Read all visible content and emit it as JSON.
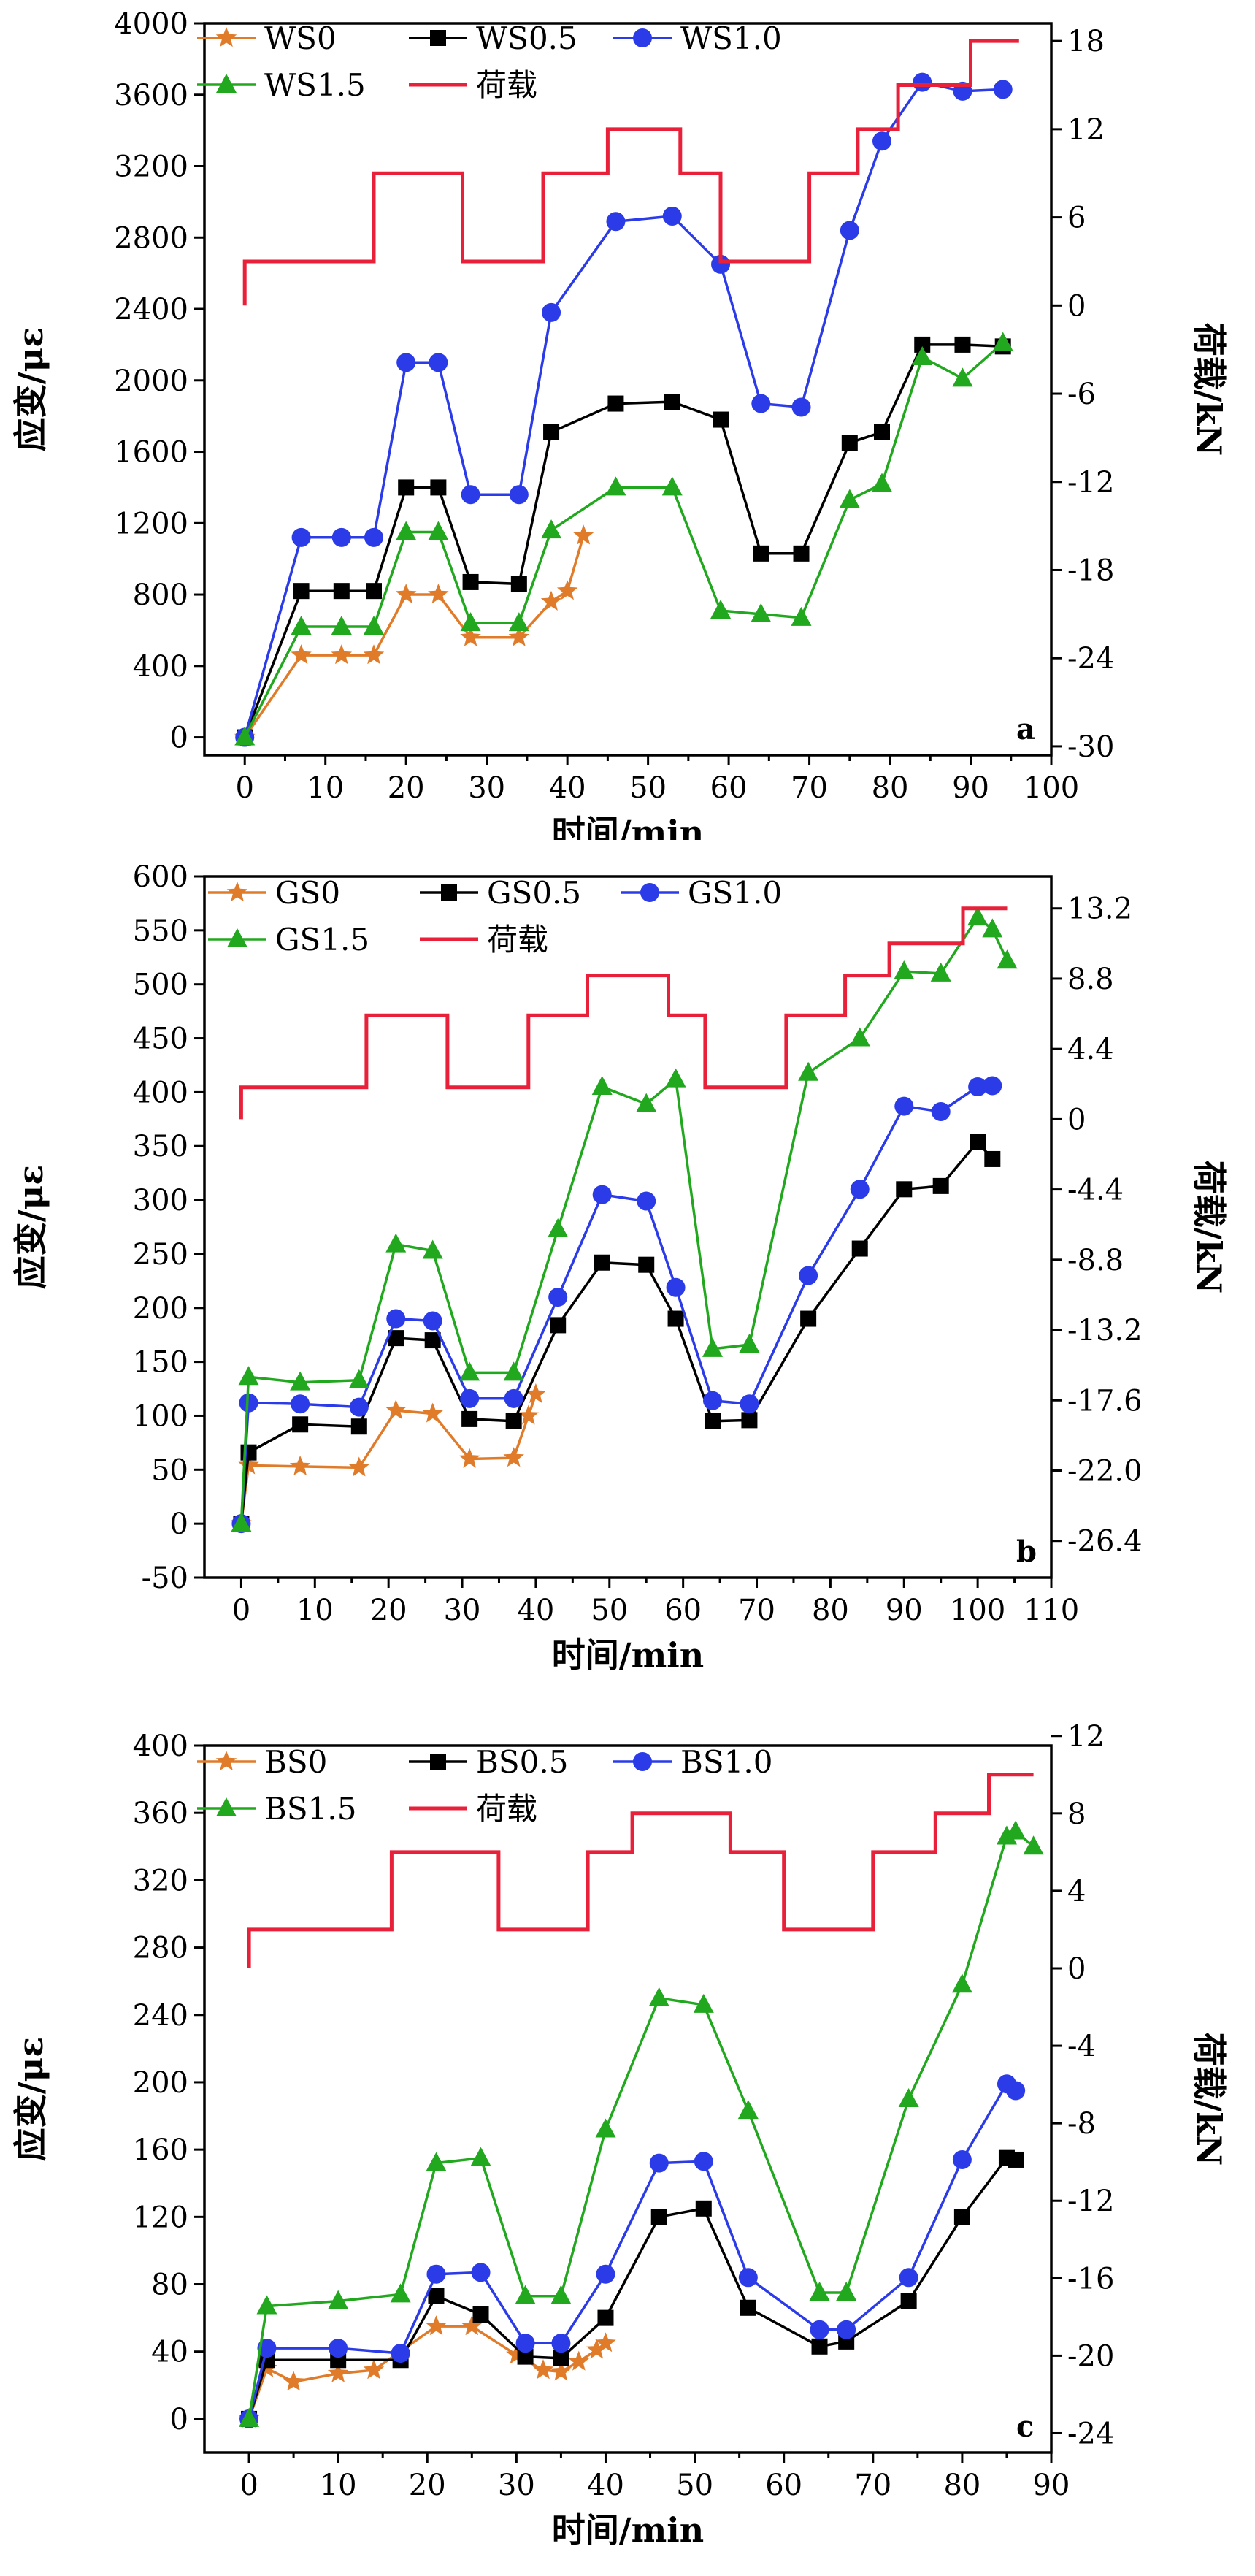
{
  "colors": {
    "s0": "#e07b2a",
    "s05": "#000000",
    "s10": "#2b3be8",
    "s15": "#22a81e",
    "load": "#e8203a"
  },
  "chart_data": [
    {
      "type": "line",
      "panel_label": "a",
      "xlabel": "时间/min",
      "ylabel": "应变/με",
      "y2label": "荷载/kN",
      "xlim": [
        -5,
        100
      ],
      "ylim": [
        -100,
        4000
      ],
      "y2lim": [
        -30.6,
        19.2
      ],
      "xticks": [
        0,
        10,
        20,
        30,
        40,
        50,
        60,
        70,
        80,
        90,
        100
      ],
      "yticks": [
        0,
        400,
        800,
        1200,
        1600,
        2000,
        2400,
        2800,
        3200,
        3600,
        4000
      ],
      "y2ticks": [
        -30,
        -24,
        -18,
        -12,
        -6,
        0,
        6,
        12,
        18
      ],
      "series": [
        {
          "name": "WS0",
          "marker": "star",
          "color": "#e07b2a",
          "x": [
            0,
            7,
            12,
            16,
            20,
            24,
            28,
            34,
            38,
            40,
            42
          ],
          "y": [
            0,
            460,
            460,
            460,
            800,
            800,
            560,
            560,
            760,
            820,
            1130
          ]
        },
        {
          "name": "WS0.5",
          "marker": "square",
          "color": "#000000",
          "x": [
            0,
            7,
            12,
            16,
            20,
            24,
            28,
            34,
            38,
            46,
            53,
            59,
            64,
            69,
            75,
            79,
            84,
            89,
            94
          ],
          "y": [
            0,
            820,
            820,
            820,
            1400,
            1400,
            870,
            860,
            1710,
            1870,
            1880,
            1780,
            1030,
            1030,
            1650,
            1710,
            2200,
            2200,
            2190
          ]
        },
        {
          "name": "WS1.0",
          "marker": "circle",
          "color": "#2b3be8",
          "x": [
            0,
            7,
            12,
            16,
            20,
            24,
            28,
            34,
            38,
            46,
            53,
            59,
            64,
            69,
            75,
            79,
            84,
            89,
            94
          ],
          "y": [
            0,
            1120,
            1120,
            1120,
            2100,
            2100,
            1360,
            1360,
            2380,
            2890,
            2920,
            2650,
            1870,
            1850,
            2840,
            3340,
            3670,
            3620,
            3630
          ]
        },
        {
          "name": "WS1.5",
          "marker": "triangle",
          "color": "#22a81e",
          "x": [
            0,
            7,
            12,
            16,
            20,
            24,
            28,
            34,
            38,
            46,
            53,
            59,
            64,
            69,
            75,
            79,
            84,
            89,
            94
          ],
          "y": [
            0,
            620,
            620,
            620,
            1150,
            1150,
            640,
            640,
            1160,
            1400,
            1400,
            710,
            690,
            670,
            1330,
            1420,
            2130,
            2010,
            2210
          ]
        },
        {
          "name": "荷载",
          "marker": "none",
          "color": "#e8203a",
          "axis": "right",
          "step": true,
          "x": [
            0,
            0,
            16,
            16,
            27,
            27,
            37,
            37,
            45,
            45,
            54,
            54,
            59,
            59,
            70,
            70,
            76,
            76,
            81,
            81,
            90,
            90,
            96
          ],
          "y": [
            0,
            3,
            3,
            9,
            9,
            3,
            3,
            9,
            9,
            12,
            12,
            9,
            9,
            3,
            3,
            9,
            9,
            12,
            12,
            15,
            15,
            18,
            18
          ]
        }
      ]
    },
    {
      "type": "line",
      "panel_label": "b",
      "xlabel": "时间/min",
      "ylabel": "应变/με",
      "y2label": "荷载/kN",
      "xlim": [
        -5,
        110
      ],
      "ylim": [
        -50,
        600
      ],
      "y2lim": [
        -28.7,
        15.2
      ],
      "xticks": [
        0,
        10,
        20,
        30,
        40,
        50,
        60,
        70,
        80,
        90,
        100,
        110
      ],
      "yticks": [
        -50,
        0,
        50,
        100,
        150,
        200,
        250,
        300,
        350,
        400,
        450,
        500,
        550,
        600
      ],
      "y2ticks": [
        "-26.4",
        "-22.0",
        "-17.6",
        "-13.2",
        "-8.8",
        "-4.4",
        "0",
        "4.4",
        "8.8",
        "13.2"
      ],
      "series": [
        {
          "name": "GS0",
          "marker": "star",
          "color": "#e07b2a",
          "x": [
            0,
            1,
            8,
            16,
            21,
            26,
            31,
            37,
            39,
            40
          ],
          "y": [
            0,
            54,
            53,
            52,
            105,
            102,
            60,
            61,
            100,
            120
          ]
        },
        {
          "name": "GS0.5",
          "marker": "square",
          "color": "#000000",
          "x": [
            0,
            1,
            8,
            16,
            21,
            26,
            31,
            37,
            43,
            49,
            55,
            59,
            64,
            69,
            77,
            84,
            90,
            95,
            100,
            102
          ],
          "y": [
            0,
            66,
            92,
            90,
            172,
            170,
            97,
            95,
            184,
            242,
            240,
            190,
            95,
            96,
            190,
            255,
            310,
            313,
            354,
            338
          ]
        },
        {
          "name": "GS1.0",
          "marker": "circle",
          "color": "#2b3be8",
          "x": [
            0,
            1,
            8,
            16,
            21,
            26,
            31,
            37,
            43,
            49,
            55,
            59,
            64,
            69,
            77,
            84,
            90,
            95,
            100,
            102
          ],
          "y": [
            0,
            112,
            111,
            108,
            190,
            188,
            116,
            116,
            210,
            305,
            299,
            219,
            114,
            111,
            230,
            310,
            387,
            382,
            405,
            406
          ]
        },
        {
          "name": "GS1.5",
          "marker": "triangle",
          "color": "#22a81e",
          "x": [
            0,
            1,
            8,
            16,
            21,
            26,
            31,
            37,
            43,
            49,
            55,
            59,
            64,
            69,
            77,
            84,
            90,
            95,
            100,
            102,
            104
          ],
          "y": [
            0,
            136,
            131,
            133,
            259,
            253,
            140,
            140,
            273,
            405,
            389,
            412,
            162,
            166,
            418,
            450,
            512,
            510,
            562,
            551,
            522
          ]
        },
        {
          "name": "荷载",
          "marker": "none",
          "color": "#e8203a",
          "axis": "right",
          "step": true,
          "x": [
            0,
            0,
            17,
            17,
            28,
            28,
            39,
            39,
            47,
            47,
            58,
            58,
            63,
            63,
            74,
            74,
            82,
            82,
            88,
            88,
            98,
            98,
            104
          ],
          "y": [
            0,
            2,
            2,
            6.5,
            6.5,
            2,
            2,
            6.5,
            6.5,
            9,
            9,
            6.5,
            6.5,
            2,
            2,
            6.5,
            6.5,
            9,
            9,
            11,
            11,
            13.2,
            13.2
          ]
        }
      ]
    },
    {
      "type": "line",
      "panel_label": "c",
      "xlabel": "时间/min",
      "ylabel": "应变/με",
      "y2label": "荷载/kN",
      "xlim": [
        -5,
        90
      ],
      "ylim": [
        -20,
        400
      ],
      "y2lim": [
        -25,
        11.5
      ],
      "xticks": [
        0,
        10,
        20,
        30,
        40,
        50,
        60,
        70,
        80,
        90
      ],
      "yticks": [
        0,
        40,
        80,
        120,
        160,
        200,
        240,
        280,
        320,
        360,
        400
      ],
      "y2ticks": [
        -24,
        -20,
        -16,
        -12,
        -8,
        -4,
        0,
        4,
        8,
        12
      ],
      "series": [
        {
          "name": "BS0",
          "marker": "star",
          "color": "#e07b2a",
          "x": [
            0,
            2,
            5,
            10,
            14,
            21,
            25,
            30,
            33,
            35,
            37,
            39,
            40
          ],
          "y": [
            0,
            30,
            22,
            27,
            29,
            55,
            55,
            38,
            29,
            28,
            34,
            41,
            45
          ]
        },
        {
          "name": "BS0.5",
          "marker": "square",
          "color": "#000000",
          "x": [
            0,
            2,
            10,
            17,
            21,
            26,
            31,
            35,
            40,
            46,
            51,
            56,
            64,
            67,
            74,
            80,
            85,
            86
          ],
          "y": [
            0,
            35,
            35,
            35,
            73,
            62,
            37,
            36,
            60,
            120,
            125,
            66,
            43,
            46,
            70,
            120,
            155,
            154
          ]
        },
        {
          "name": "BS1.0",
          "marker": "circle",
          "color": "#2b3be8",
          "x": [
            0,
            2,
            10,
            17,
            21,
            26,
            31,
            35,
            40,
            46,
            51,
            56,
            64,
            67,
            74,
            80,
            85,
            86
          ],
          "y": [
            0,
            42,
            42,
            39,
            86,
            87,
            45,
            45,
            86,
            152,
            153,
            84,
            53,
            53,
            84,
            154,
            199,
            195
          ]
        },
        {
          "name": "BS1.5",
          "marker": "triangle",
          "color": "#22a81e",
          "x": [
            0,
            2,
            10,
            17,
            21,
            26,
            31,
            35,
            40,
            46,
            51,
            56,
            64,
            67,
            74,
            80,
            85,
            86,
            88
          ],
          "y": [
            0,
            67,
            70,
            74,
            152,
            155,
            73,
            73,
            172,
            250,
            246,
            183,
            75,
            75,
            190,
            258,
            346,
            349,
            340
          ]
        },
        {
          "name": "荷载",
          "marker": "none",
          "color": "#e8203a",
          "axis": "right",
          "step": true,
          "x": [
            0,
            0,
            16,
            16,
            28,
            28,
            38,
            38,
            43,
            43,
            54,
            54,
            60,
            60,
            70,
            70,
            77,
            77,
            83,
            83,
            88
          ],
          "y": [
            0,
            2,
            2,
            6,
            6,
            2,
            2,
            6,
            6,
            8,
            8,
            6,
            6,
            2,
            2,
            6,
            6,
            8,
            8,
            10,
            10
          ]
        }
      ]
    }
  ]
}
